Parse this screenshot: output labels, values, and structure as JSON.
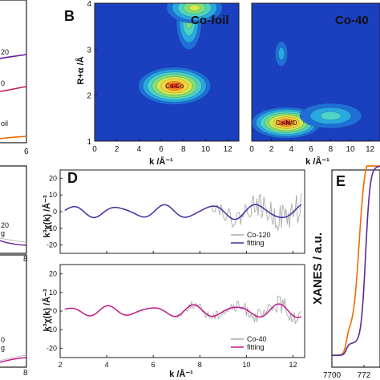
{
  "panel_labels": {
    "B": "B",
    "D": "D",
    "E": "E"
  },
  "left_strip": {
    "top": {
      "labels": [
        "20",
        "0",
        "oil"
      ],
      "colors": [
        "#6a1b9a",
        "#c2185b",
        "#ef6c00"
      ],
      "xtick": "6"
    },
    "middle": {
      "labels": [
        "20",
        "g"
      ],
      "xtick": "8"
    },
    "bottom": {
      "labels": [
        "0",
        "g"
      ],
      "xtick": "8"
    }
  },
  "chart_data": [
    {
      "id": "B-left",
      "type": "heatmap",
      "title": "Co-foil",
      "xlabel": "k /Å⁻¹",
      "ylabel": "R+α /Å",
      "xlim": [
        0,
        13
      ],
      "ylim": [
        1,
        4
      ],
      "xticks": [
        "0",
        "2",
        "4",
        "6",
        "8",
        "10",
        "12"
      ],
      "yticks": [
        "1",
        "2",
        "3",
        "4"
      ],
      "blobs": [
        {
          "label": "Co-Co",
          "k": 7.2,
          "R": 2.2,
          "sk": 2.6,
          "sR": 0.3,
          "amp": 1.0
        },
        {
          "label": "",
          "k": 8.5,
          "R": 3.6,
          "sk": 0.9,
          "sR": 0.45,
          "amp": 0.45
        },
        {
          "label": "",
          "k": 9.0,
          "R": 3.9,
          "sk": 2.0,
          "sR": 0.25,
          "amp": 0.6
        }
      ]
    },
    {
      "id": "B-right",
      "type": "heatmap",
      "title": "Co-40",
      "xlabel": "k /Å⁻¹",
      "xlim": [
        0,
        13
      ],
      "ylim": [
        1,
        4
      ],
      "xticks": [
        "0",
        "2",
        "4",
        "6",
        "8",
        "10",
        "12"
      ],
      "blobs": [
        {
          "label": "Co-N/O",
          "k": 3.5,
          "R": 1.4,
          "sk": 2.8,
          "sR": 0.25,
          "amp": 1.0
        },
        {
          "label": "",
          "k": 8.0,
          "R": 1.55,
          "sk": 2.5,
          "sR": 0.2,
          "amp": 0.35
        },
        {
          "label": "",
          "k": 3.0,
          "R": 2.9,
          "sk": 0.5,
          "sR": 0.2,
          "amp": 0.25
        }
      ]
    },
    {
      "id": "D-top",
      "type": "line",
      "ylabel": "k³χ(k) /Å⁻³",
      "xlim": [
        2,
        12.5
      ],
      "ylim": [
        -25,
        25
      ],
      "yticks": [
        "20",
        "10",
        "0",
        "-10",
        "-20"
      ],
      "series": [
        {
          "name": "Co-120",
          "color": "#aaaaaa",
          "k_start": 2.2,
          "k_end": 12.4,
          "amp0": 2.2,
          "freq": 2.1,
          "noise_from": 8.5,
          "noise_amp": 14
        },
        {
          "name": "fitting",
          "color": "#4a2aa5",
          "k_start": 2.2,
          "k_end": 12.4,
          "amp0": 2.2,
          "freq": 2.1,
          "noise_from": 99,
          "noise_amp": 0
        }
      ],
      "legend_position": "bottom-right"
    },
    {
      "id": "D-bottom",
      "type": "line",
      "ylabel": "k³χ(k) /Å⁻³",
      "xlabel": "k /Å⁻¹",
      "xlim": [
        2,
        12.5
      ],
      "ylim": [
        -25,
        25
      ],
      "xticks": [
        "2",
        "4",
        "6",
        "8",
        "10",
        "12"
      ],
      "yticks": [
        "20",
        "10",
        "0",
        "-10",
        "-20"
      ],
      "series": [
        {
          "name": "Co-40",
          "color": "#aaaaaa",
          "k_start": 2.2,
          "k_end": 12.4,
          "amp0": 1.6,
          "freq": 2.3,
          "noise_from": 7.0,
          "noise_amp": 6
        },
        {
          "name": "fitting",
          "color": "#c2188b",
          "k_start": 2.2,
          "k_end": 12.4,
          "amp0": 1.6,
          "freq": 2.3,
          "noise_from": 99,
          "noise_amp": 0
        }
      ],
      "legend_position": "bottom-right"
    },
    {
      "id": "E",
      "type": "line",
      "ylabel": "XANES / a.u.",
      "xlim": [
        7700,
        7730
      ],
      "xticks": [
        "7700",
        "772"
      ],
      "series": [
        {
          "name": "",
          "color": "#ef6c00"
        },
        {
          "name": "",
          "color": "#5b2a9c"
        }
      ]
    }
  ]
}
